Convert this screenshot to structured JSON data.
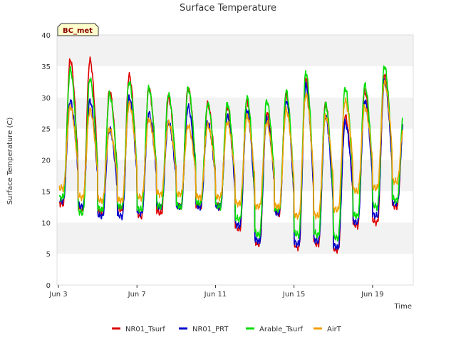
{
  "chart_data": {
    "type": "line",
    "title": "Surface Temperature",
    "xlabel": "Time",
    "ylabel": "Surface Temperature (C)",
    "badge": "BC_met",
    "ylim": [
      0,
      40
    ],
    "yticks": [
      0,
      5,
      10,
      15,
      20,
      25,
      30,
      35,
      40
    ],
    "xlim": [
      "2024-06-03",
      "2024-06-21"
    ],
    "xticks": [
      {
        "date": "2024-06-03",
        "label": "Jun 3"
      },
      {
        "date": "2024-06-07",
        "label": "Jun 7"
      },
      {
        "date": "2024-06-11",
        "label": "Jun 11"
      },
      {
        "date": "2024-06-15",
        "label": "Jun 15"
      },
      {
        "date": "2024-06-19",
        "label": "Jun 19"
      }
    ],
    "grid": "horizontal bands",
    "legend_position": "bottom",
    "days": [
      "2024-06-03",
      "2024-06-04",
      "2024-06-05",
      "2024-06-06",
      "2024-06-07",
      "2024-06-08",
      "2024-06-09",
      "2024-06-10",
      "2024-06-11",
      "2024-06-12",
      "2024-06-13",
      "2024-06-14",
      "2024-06-15",
      "2024-06-16",
      "2024-06-17",
      "2024-06-18",
      "2024-06-19",
      "2024-06-20",
      "2024-06-21"
    ],
    "series": [
      {
        "name": "NR01_Tsurf",
        "color": "#dd0000",
        "daily_min": [
          13.0,
          12.0,
          11.5,
          12.0,
          11.0,
          11.5,
          12.5,
          12.5,
          12.5,
          9.0,
          6.5,
          11.5,
          6.0,
          6.5,
          5.5,
          9.5,
          10.0,
          12.5,
          8.0
        ],
        "daily_max": [
          36.0,
          36.0,
          31.0,
          33.5,
          31.5,
          30.0,
          31.5,
          29.0,
          28.5,
          29.5,
          27.5,
          30.5,
          33.0,
          29.0,
          27.0,
          31.0,
          33.5,
          27.0,
          null
        ]
      },
      {
        "name": "NR01_PRT",
        "color": "#0000cc",
        "daily_min": [
          13.5,
          12.5,
          11.0,
          11.0,
          11.5,
          12.5,
          12.5,
          12.5,
          12.5,
          9.5,
          7.0,
          11.5,
          6.5,
          7.0,
          6.0,
          10.0,
          11.0,
          13.0,
          8.5
        ],
        "daily_max": [
          29.5,
          29.5,
          25.0,
          30.0,
          27.5,
          26.0,
          28.5,
          26.0,
          27.0,
          28.0,
          26.5,
          29.5,
          32.0,
          27.0,
          26.0,
          29.5,
          32.5,
          26.5,
          null
        ]
      },
      {
        "name": "Arable_Tsurf",
        "color": "#00dd00",
        "daily_min": [
          14.0,
          11.5,
          12.0,
          12.5,
          12.0,
          12.5,
          12.5,
          13.0,
          12.5,
          10.5,
          8.0,
          12.0,
          8.0,
          8.0,
          7.5,
          11.0,
          12.5,
          13.5,
          9.0
        ],
        "daily_max": [
          34.5,
          33.0,
          30.5,
          32.5,
          31.5,
          30.5,
          31.5,
          29.0,
          29.0,
          30.0,
          29.5,
          31.0,
          34.0,
          29.0,
          31.5,
          32.0,
          35.0,
          28.5,
          null
        ]
      },
      {
        "name": "AirT",
        "color": "#f0a000",
        "daily_min": [
          15.5,
          14.0,
          13.5,
          13.5,
          14.0,
          14.5,
          14.5,
          14.0,
          14.0,
          13.0,
          12.5,
          12.5,
          11.0,
          11.0,
          12.0,
          15.0,
          15.5,
          16.5,
          12.0
        ],
        "daily_max": [
          28.5,
          28.0,
          25.0,
          29.0,
          26.5,
          26.0,
          25.5,
          25.5,
          26.0,
          27.0,
          26.0,
          28.0,
          30.5,
          27.0,
          29.5,
          28.5,
          32.5,
          26.0,
          null
        ]
      }
    ]
  }
}
